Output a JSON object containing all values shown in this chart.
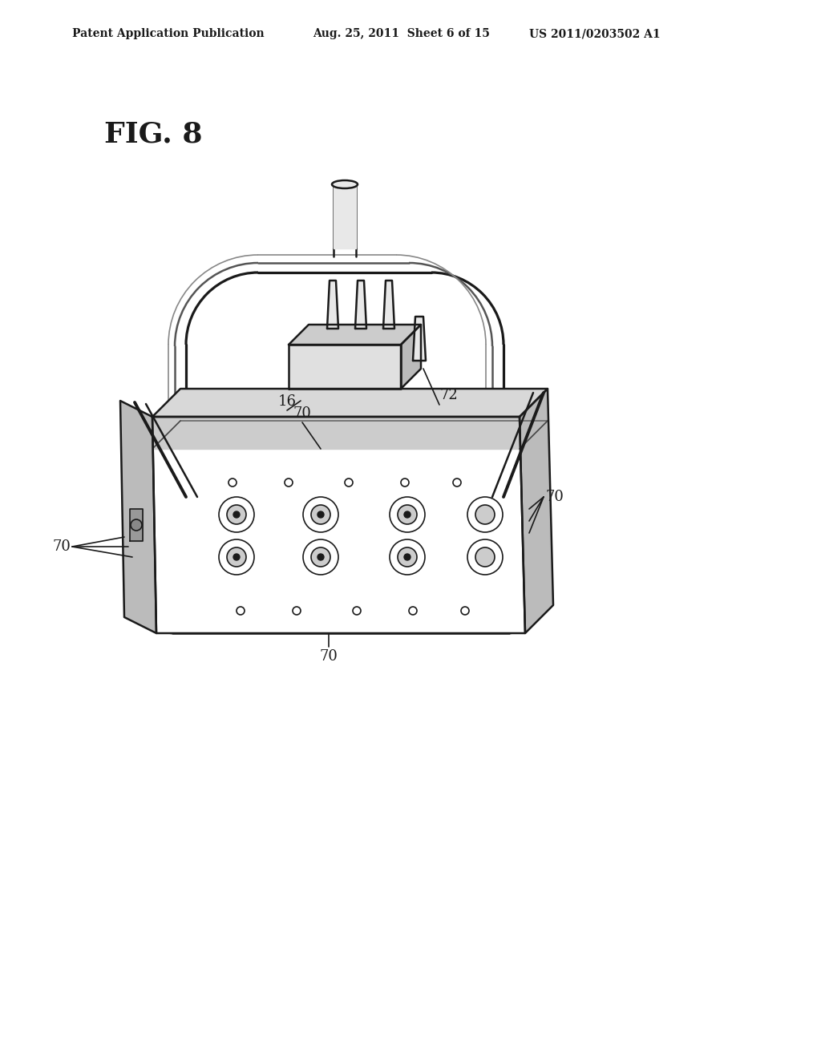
{
  "bg_color": "#ffffff",
  "line_color": "#1a1a1a",
  "header_left": "Patent Application Publication",
  "header_mid": "Aug. 25, 2011  Sheet 6 of 15",
  "header_right": "US 2011/0203502 A1",
  "fig_label": "FIG. 8",
  "label_16": "16",
  "label_70a": "70",
  "label_70b": "70",
  "label_70c": "70",
  "label_70d": "70",
  "label_72": "72"
}
